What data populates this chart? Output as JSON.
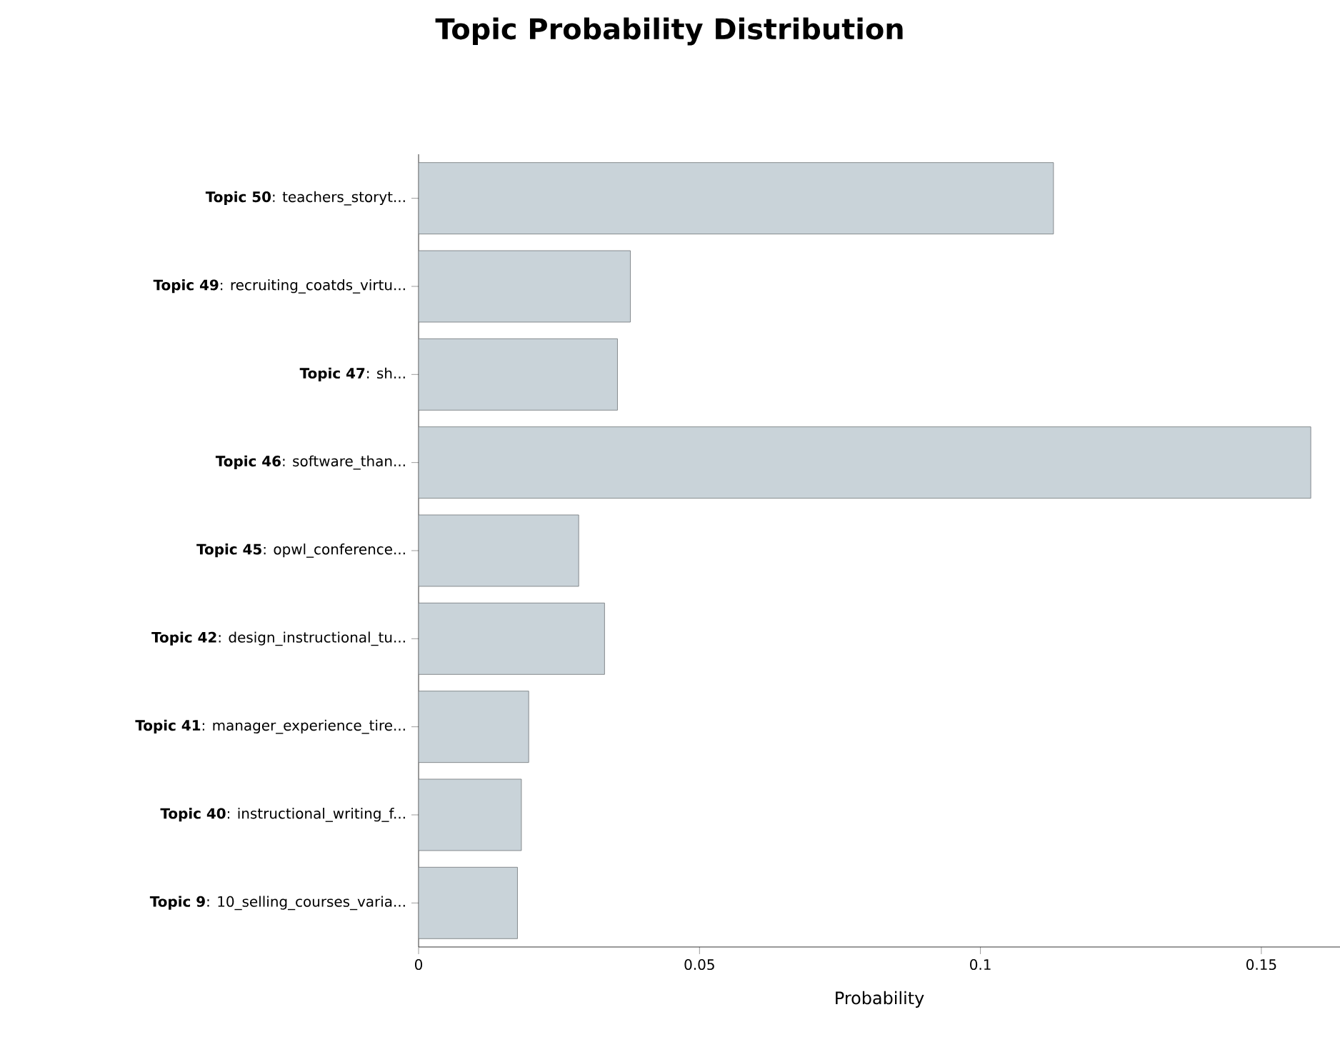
{
  "chart_data": {
    "type": "bar",
    "orientation": "horizontal",
    "title": "Topic Probability Distribution",
    "xlabel": "Probability",
    "categories": [
      "**Topic 50**: teachers_storyt...",
      "**Topic 49**: recruiting_coatds_virtu...",
      "**Topic 47**: sh...",
      "**Topic 46**: software_than...",
      "**Topic 45**: opwl_conference...",
      "**Topic 42**: design_instructional_tu...",
      "**Topic 41**: manager_experience_tire...",
      "**Topic 40**: instructional_writing_f...",
      "**Topic 9**: 10_selling_courses_varia..."
    ],
    "values": [
      0.113,
      0.0377,
      0.0354,
      0.1588,
      0.0285,
      0.0331,
      0.0196,
      0.0183,
      0.0176
    ],
    "color": "#c9d3d9",
    "xlim": [
      0,
      0.164
    ],
    "xticks": [
      0,
      0.05,
      0.1,
      0.15
    ]
  }
}
